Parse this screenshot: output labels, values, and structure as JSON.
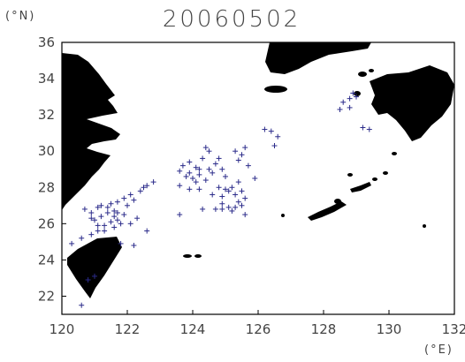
{
  "title": "20060502",
  "units": {
    "lat": "(°N)",
    "lon": "(°E)"
  },
  "axes": {
    "x_ticks": [
      "120",
      "122",
      "124",
      "126",
      "128",
      "130",
      "132"
    ],
    "y_ticks": [
      "36",
      "34",
      "32",
      "30",
      "28",
      "26",
      "24",
      "22"
    ],
    "xlim": [
      120,
      132
    ],
    "ylim": [
      21,
      36
    ]
  },
  "colors": {
    "land": "#000000",
    "marker": "#2b2b8a",
    "frame": "#000000"
  },
  "markers": {
    "symbol": "+",
    "points": [
      [
        120.6,
        21.5
      ],
      [
        120.8,
        22.9
      ],
      [
        121.0,
        23.1
      ],
      [
        120.3,
        24.9
      ],
      [
        120.6,
        25.2
      ],
      [
        120.9,
        25.4
      ],
      [
        121.1,
        25.6
      ],
      [
        121.3,
        25.9
      ],
      [
        121.0,
        26.2
      ],
      [
        121.2,
        26.4
      ],
      [
        121.4,
        26.6
      ],
      [
        121.6,
        26.7
      ],
      [
        121.5,
        26.1
      ],
      [
        121.7,
        26.2
      ],
      [
        121.8,
        26.0
      ],
      [
        121.9,
        26.5
      ],
      [
        121.3,
        25.6
      ],
      [
        121.6,
        25.8
      ],
      [
        121.1,
        26.9
      ],
      [
        120.7,
        26.8
      ],
      [
        120.9,
        26.3
      ],
      [
        121.2,
        27.0
      ],
      [
        121.5,
        27.1
      ],
      [
        121.7,
        27.2
      ],
      [
        121.9,
        27.4
      ],
      [
        122.1,
        27.6
      ],
      [
        122.2,
        27.3
      ],
      [
        122.4,
        27.8
      ],
      [
        122.6,
        28.1
      ],
      [
        122.0,
        27.0
      ],
      [
        121.6,
        26.4
      ],
      [
        121.4,
        26.9
      ],
      [
        122.3,
        26.3
      ],
      [
        122.1,
        26.0
      ],
      [
        122.6,
        25.6
      ],
      [
        121.8,
        24.9
      ],
      [
        122.2,
        24.8
      ],
      [
        120.9,
        26.6
      ],
      [
        121.1,
        25.9
      ],
      [
        121.7,
        26.6
      ],
      [
        122.5,
        28.0
      ],
      [
        122.8,
        28.3
      ],
      [
        123.6,
        28.9
      ],
      [
        123.8,
        28.6
      ],
      [
        123.7,
        29.2
      ],
      [
        123.9,
        28.8
      ],
      [
        124.1,
        29.1
      ],
      [
        124.3,
        29.6
      ],
      [
        124.5,
        30.0
      ],
      [
        124.4,
        28.4
      ],
      [
        124.2,
        27.9
      ],
      [
        124.6,
        27.6
      ],
      [
        124.8,
        28.0
      ],
      [
        124.9,
        27.5
      ],
      [
        124.5,
        29.0
      ],
      [
        124.7,
        29.3
      ],
      [
        123.6,
        28.1
      ],
      [
        124.0,
        28.5
      ],
      [
        124.2,
        29.0
      ],
      [
        123.9,
        29.4
      ],
      [
        124.6,
        28.8
      ],
      [
        124.9,
        29.0
      ],
      [
        125.2,
        28.0
      ],
      [
        125.3,
        27.6
      ],
      [
        125.5,
        27.8
      ],
      [
        125.4,
        27.2
      ],
      [
        125.2,
        26.7
      ],
      [
        125.1,
        26.9
      ],
      [
        124.9,
        27.1
      ],
      [
        125.6,
        27.4
      ],
      [
        125.4,
        28.3
      ],
      [
        125.0,
        28.6
      ],
      [
        124.3,
        26.8
      ],
      [
        124.7,
        26.8
      ],
      [
        124.9,
        26.8
      ],
      [
        125.3,
        26.9
      ],
      [
        125.1,
        27.8
      ],
      [
        125.6,
        26.5
      ],
      [
        124.4,
        30.2
      ],
      [
        123.6,
        26.5
      ],
      [
        125.9,
        28.5
      ],
      [
        126.2,
        31.2
      ],
      [
        126.4,
        31.1
      ],
      [
        126.6,
        30.8
      ],
      [
        126.5,
        30.3
      ],
      [
        125.6,
        30.2
      ],
      [
        125.3,
        30.0
      ],
      [
        125.5,
        29.8
      ],
      [
        125.4,
        29.5
      ],
      [
        125.7,
        29.2
      ],
      [
        124.8,
        29.6
      ],
      [
        128.6,
        32.7
      ],
      [
        128.8,
        32.9
      ],
      [
        129.0,
        33.0
      ],
      [
        128.8,
        32.4
      ],
      [
        128.5,
        32.3
      ],
      [
        129.2,
        31.3
      ],
      [
        129.4,
        31.2
      ],
      [
        128.9,
        33.2
      ],
      [
        124.1,
        28.3
      ],
      [
        123.9,
        27.9
      ],
      [
        124.2,
        28.7
      ],
      [
        125.0,
        27.9
      ],
      [
        125.5,
        27.0
      ]
    ]
  }
}
